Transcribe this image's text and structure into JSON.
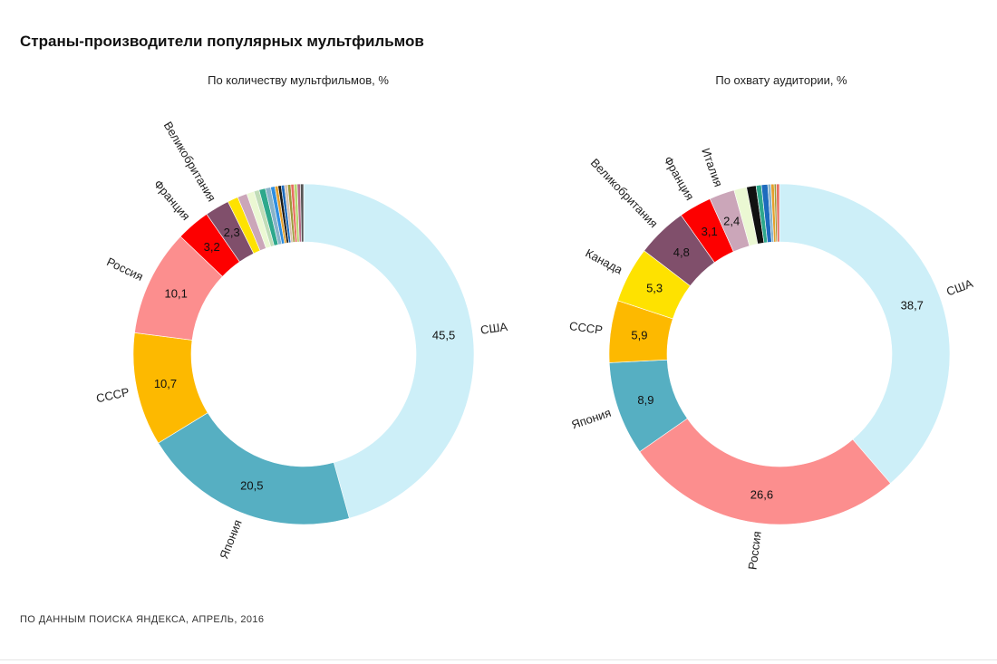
{
  "title": "Страны-производители популярных мультфильмов",
  "source": "ПО ДАННЫМ ПОИСКА ЯНДЕКСА, АПРЕЛЬ, 2016",
  "chart_data": [
    {
      "type": "pie",
      "subtitle": "По количеству мультфильмов, %",
      "slices": [
        {
          "name": "США",
          "value": 45.5,
          "value_label": "45,5",
          "color": "#cdeff8"
        },
        {
          "name": "Япония",
          "value": 20.5,
          "value_label": "20,5",
          "color": "#56afc2"
        },
        {
          "name": "СССР",
          "value": 10.7,
          "value_label": "10,7",
          "color": "#fdb900"
        },
        {
          "name": "Россия",
          "value": 10.1,
          "value_label": "10,1",
          "color": "#fc8e8e"
        },
        {
          "name": "Франция",
          "value": 3.2,
          "value_label": "3,2",
          "color": "#fd0000"
        },
        {
          "name": "Великобритания",
          "value": 2.3,
          "value_label": "2,3",
          "color": "#804f6b"
        },
        {
          "name": "",
          "value": 1.0,
          "value_label": "",
          "color": "#fee200"
        },
        {
          "name": "",
          "value": 0.9,
          "value_label": "",
          "color": "#cba6b9"
        },
        {
          "name": "",
          "value": 0.7,
          "value_label": "",
          "color": "#ebf8d3"
        },
        {
          "name": "",
          "value": 0.5,
          "value_label": "",
          "color": "#c1ddb8"
        },
        {
          "name": "",
          "value": 0.6,
          "value_label": "",
          "color": "#2ea88c"
        },
        {
          "name": "",
          "value": 0.5,
          "value_label": "",
          "color": "#89b3c9"
        },
        {
          "name": "",
          "value": 0.4,
          "value_label": "",
          "color": "#2e8ee0"
        },
        {
          "name": "",
          "value": 0.3,
          "value_label": "",
          "color": "#e5a02b"
        },
        {
          "name": "",
          "value": 0.3,
          "value_label": "",
          "color": "#1a1a1a"
        },
        {
          "name": "",
          "value": 0.3,
          "value_label": "",
          "color": "#1e6bbd"
        },
        {
          "name": "",
          "value": 0.3,
          "value_label": "",
          "color": "#d8c2b0"
        },
        {
          "name": "",
          "value": 0.3,
          "value_label": "",
          "color": "#9b9b3a"
        },
        {
          "name": "",
          "value": 0.3,
          "value_label": "",
          "color": "#e86f60"
        },
        {
          "name": "",
          "value": 0.3,
          "value_label": "",
          "color": "#b7d86f"
        },
        {
          "name": "",
          "value": 0.3,
          "value_label": "",
          "color": "#b66a8a"
        },
        {
          "name": "",
          "value": 0.3,
          "value_label": "",
          "color": "#555555"
        }
      ]
    },
    {
      "type": "pie",
      "subtitle": "По охвату аудитории, %",
      "slices": [
        {
          "name": "США",
          "value": 38.7,
          "value_label": "38,7",
          "color": "#cdeff8"
        },
        {
          "name": "Россия",
          "value": 26.6,
          "value_label": "26,6",
          "color": "#fc8e8e"
        },
        {
          "name": "Япония",
          "value": 8.9,
          "value_label": "8,9",
          "color": "#56afc2"
        },
        {
          "name": "СССР",
          "value": 5.9,
          "value_label": "5,9",
          "color": "#fdb900"
        },
        {
          "name": "Канада",
          "value": 5.3,
          "value_label": "5,3",
          "color": "#fee200"
        },
        {
          "name": "Великобритания",
          "value": 4.8,
          "value_label": "4,8",
          "color": "#804f6b"
        },
        {
          "name": "Франция",
          "value": 3.1,
          "value_label": "3,1",
          "color": "#fd0000"
        },
        {
          "name": "Италия",
          "value": 2.4,
          "value_label": "2,4",
          "color": "#cba6b9"
        },
        {
          "name": "",
          "value": 1.2,
          "value_label": "",
          "color": "#ebf8d3"
        },
        {
          "name": "",
          "value": 0.9,
          "value_label": "",
          "color": "#111111"
        },
        {
          "name": "",
          "value": 0.5,
          "value_label": "",
          "color": "#2ea88c"
        },
        {
          "name": "",
          "value": 0.6,
          "value_label": "",
          "color": "#1e6bbd"
        },
        {
          "name": "",
          "value": 0.3,
          "value_label": "",
          "color": "#89b3c9"
        },
        {
          "name": "",
          "value": 0.3,
          "value_label": "",
          "color": "#e5a02b"
        },
        {
          "name": "",
          "value": 0.2,
          "value_label": "",
          "color": "#9b9b3a"
        },
        {
          "name": "",
          "value": 0.3,
          "value_label": "",
          "color": "#e86f60"
        }
      ]
    }
  ]
}
